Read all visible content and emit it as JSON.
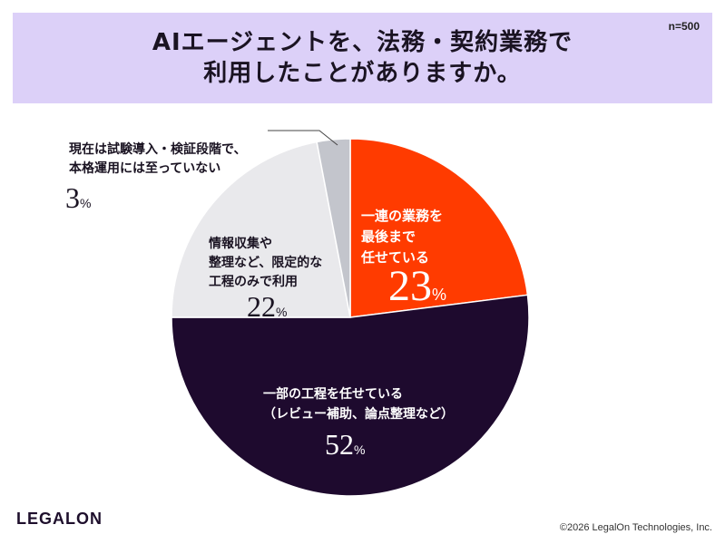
{
  "header": {
    "title": "AIエージェントを、法務・契約業務で\n利用したことがありますか。",
    "sample_size": "n=500"
  },
  "chart_data": {
    "type": "pie",
    "title": "AIエージェントを、法務・契約業務で利用したことがありますか。",
    "unit": "%",
    "slices": [
      {
        "label": "一連の業務を\n最後まで\n任せている",
        "value": 23,
        "color": "#ff3b00",
        "text_color": "#ffffff"
      },
      {
        "label": "一部の工程を任せている\n（レビュー補助、論点整理など）",
        "value": 52,
        "color": "#1e0a2e",
        "text_color": "#ffffff"
      },
      {
        "label": "情報収集や\n整理など、限定的な\n工程のみで利用",
        "value": 22,
        "color": "#e9e9ec",
        "text_color": "#1a1322"
      },
      {
        "label": "現在は試験導入・検証段階で、\n本格運用には至っていない",
        "value": 3,
        "color": "#c3c5cc",
        "text_color": "#1a1322"
      }
    ]
  },
  "footer": {
    "logo": "LEGALON",
    "copyright": "©2026 LegalOn Technologies, Inc."
  }
}
